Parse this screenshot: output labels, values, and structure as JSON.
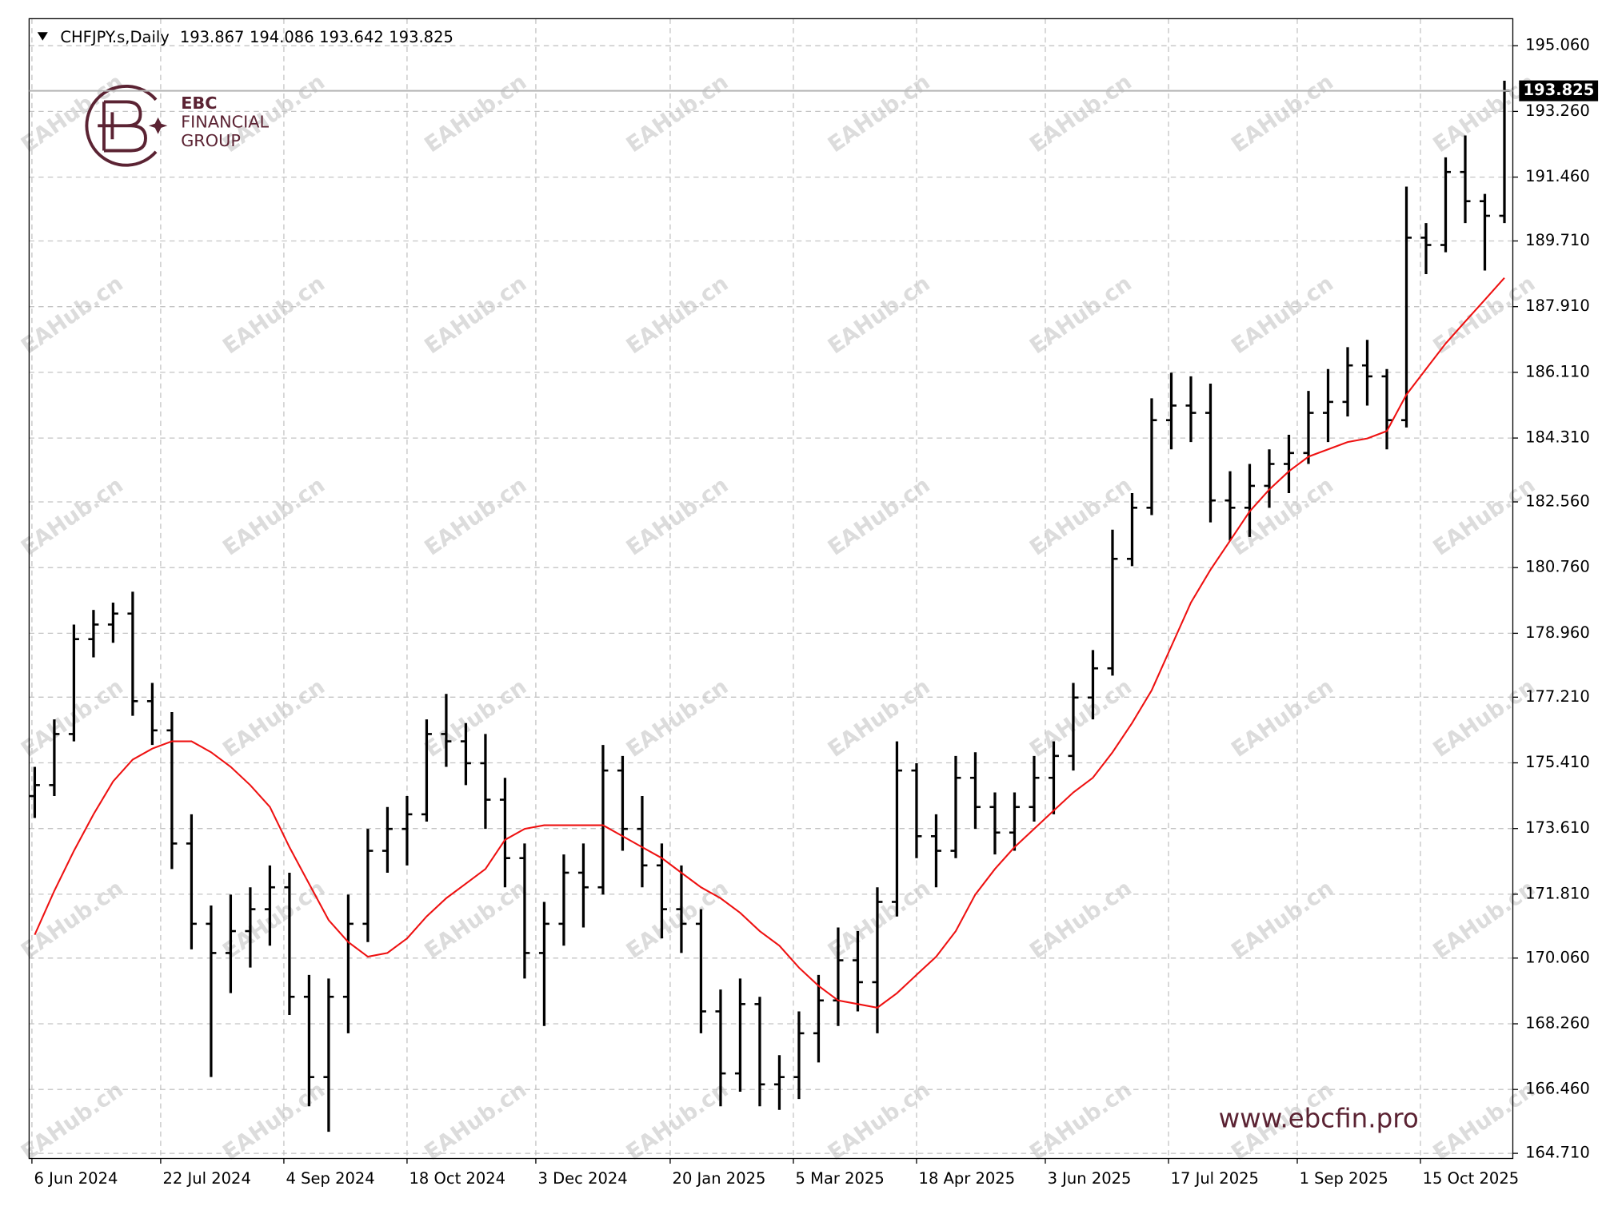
{
  "chart_data": {
    "type": "ohlc",
    "title": "CHFJPY.s,Daily",
    "header_values": [
      193.867,
      194.086,
      193.642,
      193.825
    ],
    "color": "#000000",
    "x": [
      "2024-06-07",
      "2024-06-14",
      "2024-06-21",
      "2024-06-28",
      "2024-07-05",
      "2024-07-12",
      "2024-07-19",
      "2024-07-26",
      "2024-08-02",
      "2024-08-09",
      "2024-08-16",
      "2024-08-23",
      "2024-08-30",
      "2024-09-06",
      "2024-09-13",
      "2024-09-20",
      "2024-09-27",
      "2024-10-04",
      "2024-10-11",
      "2024-10-18",
      "2024-10-25",
      "2024-11-01",
      "2024-11-08",
      "2024-11-15",
      "2024-11-22",
      "2024-11-29",
      "2024-12-06",
      "2024-12-13",
      "2024-12-20",
      "2024-12-27",
      "2025-01-03",
      "2025-01-10",
      "2025-01-17",
      "2025-01-24",
      "2025-01-31",
      "2025-02-07",
      "2025-02-14",
      "2025-02-21",
      "2025-02-28",
      "2025-03-07",
      "2025-03-14",
      "2025-03-21",
      "2025-03-28",
      "2025-04-04",
      "2025-04-11",
      "2025-04-18",
      "2025-04-25",
      "2025-05-02",
      "2025-05-09",
      "2025-05-16",
      "2025-05-23",
      "2025-05-30",
      "2025-06-06",
      "2025-06-13",
      "2025-06-20",
      "2025-06-27",
      "2025-07-04",
      "2025-07-11",
      "2025-07-18",
      "2025-07-25",
      "2025-08-01",
      "2025-08-08",
      "2025-08-15",
      "2025-08-22",
      "2025-08-29",
      "2025-09-05",
      "2025-09-12",
      "2025-09-19",
      "2025-09-26",
      "2025-10-03",
      "2025-10-10",
      "2025-10-17",
      "2025-10-24",
      "2025-10-31",
      "2025-11-07",
      "2025-11-14"
    ],
    "open": [
      174.5,
      174.8,
      176.2,
      178.8,
      179.2,
      179.5,
      177.1,
      176.3,
      173.2,
      171.0,
      170.2,
      170.8,
      171.4,
      172.0,
      169.0,
      166.8,
      169.0,
      171.0,
      173.0,
      173.6,
      174.0,
      176.2,
      176.0,
      175.4,
      174.4,
      172.8,
      170.2,
      171.0,
      172.4,
      172.0,
      175.2,
      173.6,
      172.6,
      171.4,
      171.0,
      168.6,
      166.9,
      168.8,
      166.6,
      166.8,
      168.0,
      168.9,
      170.0,
      169.4,
      171.6,
      175.2,
      173.4,
      173.0,
      175.0,
      174.2,
      173.5,
      174.2,
      175.0,
      175.6,
      177.2,
      178.0,
      181.0,
      182.4,
      184.8,
      185.2,
      185.0,
      182.6,
      182.4,
      183.0,
      183.6,
      183.9,
      185.0,
      185.3,
      186.3,
      186.0,
      184.8,
      189.8,
      189.6,
      191.6,
      190.8,
      190.4
    ],
    "high": [
      175.3,
      176.6,
      179.2,
      179.6,
      179.8,
      180.1,
      177.6,
      176.8,
      174.0,
      171.5,
      171.8,
      172.0,
      172.6,
      172.4,
      169.6,
      169.5,
      171.8,
      173.6,
      174.2,
      174.5,
      176.6,
      177.3,
      176.5,
      176.2,
      175.0,
      173.2,
      171.6,
      172.9,
      173.2,
      175.9,
      175.6,
      174.5,
      173.2,
      172.6,
      171.4,
      169.2,
      169.5,
      169.0,
      167.4,
      168.6,
      169.6,
      170.9,
      170.8,
      172.0,
      176.0,
      175.4,
      174.0,
      175.6,
      175.7,
      174.6,
      174.6,
      175.6,
      176.0,
      177.6,
      178.5,
      181.8,
      182.8,
      185.4,
      186.1,
      186.0,
      185.8,
      183.4,
      183.6,
      184.0,
      184.4,
      185.6,
      186.2,
      186.8,
      187.0,
      186.2,
      191.2,
      190.2,
      192.0,
      192.6,
      191.0,
      194.1
    ],
    "low": [
      173.9,
      174.5,
      176.0,
      178.3,
      178.7,
      176.7,
      175.9,
      172.5,
      170.3,
      166.8,
      169.1,
      169.8,
      170.4,
      168.5,
      166.0,
      165.3,
      168.0,
      170.5,
      172.4,
      172.6,
      173.8,
      175.3,
      174.8,
      173.6,
      172.0,
      169.5,
      168.2,
      170.4,
      170.9,
      171.8,
      173.0,
      172.0,
      170.6,
      170.2,
      168.0,
      166.0,
      166.4,
      166.0,
      165.9,
      166.2,
      167.2,
      168.2,
      168.6,
      168.0,
      171.2,
      172.8,
      172.0,
      172.8,
      173.6,
      172.9,
      173.0,
      173.8,
      174.0,
      175.2,
      176.6,
      177.8,
      180.8,
      182.2,
      184.0,
      184.2,
      182.0,
      181.5,
      181.6,
      182.4,
      182.8,
      183.6,
      184.2,
      184.9,
      185.2,
      184.0,
      184.6,
      188.8,
      189.4,
      190.2,
      188.9,
      190.2
    ],
    "close": [
      174.8,
      176.2,
      178.8,
      179.2,
      179.5,
      177.1,
      176.3,
      173.2,
      171.0,
      170.2,
      170.8,
      171.4,
      172.0,
      169.0,
      166.8,
      169.0,
      171.0,
      173.0,
      173.6,
      174.0,
      176.2,
      176.0,
      175.4,
      174.4,
      172.8,
      170.2,
      171.0,
      172.4,
      172.0,
      175.2,
      173.6,
      172.6,
      171.4,
      171.0,
      168.6,
      166.9,
      168.8,
      166.6,
      166.8,
      168.0,
      168.9,
      170.0,
      169.4,
      171.6,
      175.2,
      173.4,
      173.0,
      175.0,
      174.2,
      173.5,
      174.2,
      175.0,
      175.6,
      177.2,
      178.0,
      181.0,
      182.4,
      184.8,
      185.2,
      185.0,
      182.6,
      182.4,
      183.0,
      183.6,
      183.9,
      185.0,
      185.3,
      186.3,
      186.0,
      184.8,
      189.8,
      189.6,
      191.6,
      190.8,
      190.4,
      193.825
    ],
    "overlay": {
      "color": "#ee1111",
      "values": [
        170.7,
        171.9,
        173.0,
        174.0,
        174.9,
        175.5,
        175.8,
        176.0,
        176.0,
        175.7,
        175.3,
        174.8,
        174.2,
        173.1,
        172.1,
        171.1,
        170.5,
        170.1,
        170.2,
        170.6,
        171.2,
        171.7,
        172.1,
        172.5,
        173.3,
        173.6,
        173.7,
        173.7,
        173.7,
        173.7,
        173.4,
        173.1,
        172.8,
        172.4,
        172.0,
        171.7,
        171.3,
        170.8,
        170.4,
        169.8,
        169.3,
        168.9,
        168.8,
        168.7,
        169.1,
        169.6,
        170.1,
        170.8,
        171.8,
        172.5,
        173.1,
        173.6,
        174.1,
        174.6,
        175.0,
        175.7,
        176.5,
        177.4,
        178.6,
        179.8,
        180.7,
        181.5,
        182.3,
        182.9,
        183.4,
        183.8,
        184.0,
        184.2,
        184.3,
        184.5,
        185.5,
        186.2,
        186.9,
        187.5,
        188.1,
        188.7
      ]
    },
    "last_price": 193.825,
    "xlim": [
      "2024-06-05",
      "2025-11-17"
    ],
    "ylim": [
      164.57,
      195.8
    ],
    "xticks": [
      {
        "value": "2024-06-06",
        "label": "6 Jun 2024"
      },
      {
        "value": "2024-07-22",
        "label": "22 Jul 2024"
      },
      {
        "value": "2024-09-04",
        "label": "4 Sep 2024"
      },
      {
        "value": "2024-10-18",
        "label": "18 Oct 2024"
      },
      {
        "value": "2024-12-03",
        "label": "3 Dec 2024"
      },
      {
        "value": "2025-01-20",
        "label": "20 Jan 2025"
      },
      {
        "value": "2025-03-05",
        "label": "5 Mar 2025"
      },
      {
        "value": "2025-04-18",
        "label": "18 Apr 2025"
      },
      {
        "value": "2025-06-03",
        "label": "3 Jun 2025"
      },
      {
        "value": "2025-07-17",
        "label": "17 Jul 2025"
      },
      {
        "value": "2025-09-01",
        "label": "1 Sep 2025"
      },
      {
        "value": "2025-10-15",
        "label": "15 Oct 2025"
      }
    ],
    "yticks": [
      {
        "value": 195.06,
        "label": "195.060"
      },
      {
        "value": 193.26,
        "label": "193.260"
      },
      {
        "value": 191.46,
        "label": "191.460"
      },
      {
        "value": 189.71,
        "label": "189.710"
      },
      {
        "value": 187.91,
        "label": "187.910"
      },
      {
        "value": 186.11,
        "label": "186.110"
      },
      {
        "value": 184.31,
        "label": "184.310"
      },
      {
        "value": 182.56,
        "label": "182.560"
      },
      {
        "value": 180.76,
        "label": "180.760"
      },
      {
        "value": 178.96,
        "label": "178.960"
      },
      {
        "value": 177.21,
        "label": "177.210"
      },
      {
        "value": 175.41,
        "label": "175.410"
      },
      {
        "value": 173.61,
        "label": "173.610"
      },
      {
        "value": 171.81,
        "label": "171.810"
      },
      {
        "value": 170.06,
        "label": "170.060"
      },
      {
        "value": 168.26,
        "label": "168.260"
      },
      {
        "value": 166.46,
        "label": "166.460"
      },
      {
        "value": 164.71,
        "label": "164.710"
      }
    ],
    "grid": true
  },
  "logo": {
    "name": "EBC",
    "lines": [
      "FINANCIAL",
      "GROUP"
    ]
  },
  "website": "www.ebcfin.pro",
  "watermark": "EAHub.cn"
}
